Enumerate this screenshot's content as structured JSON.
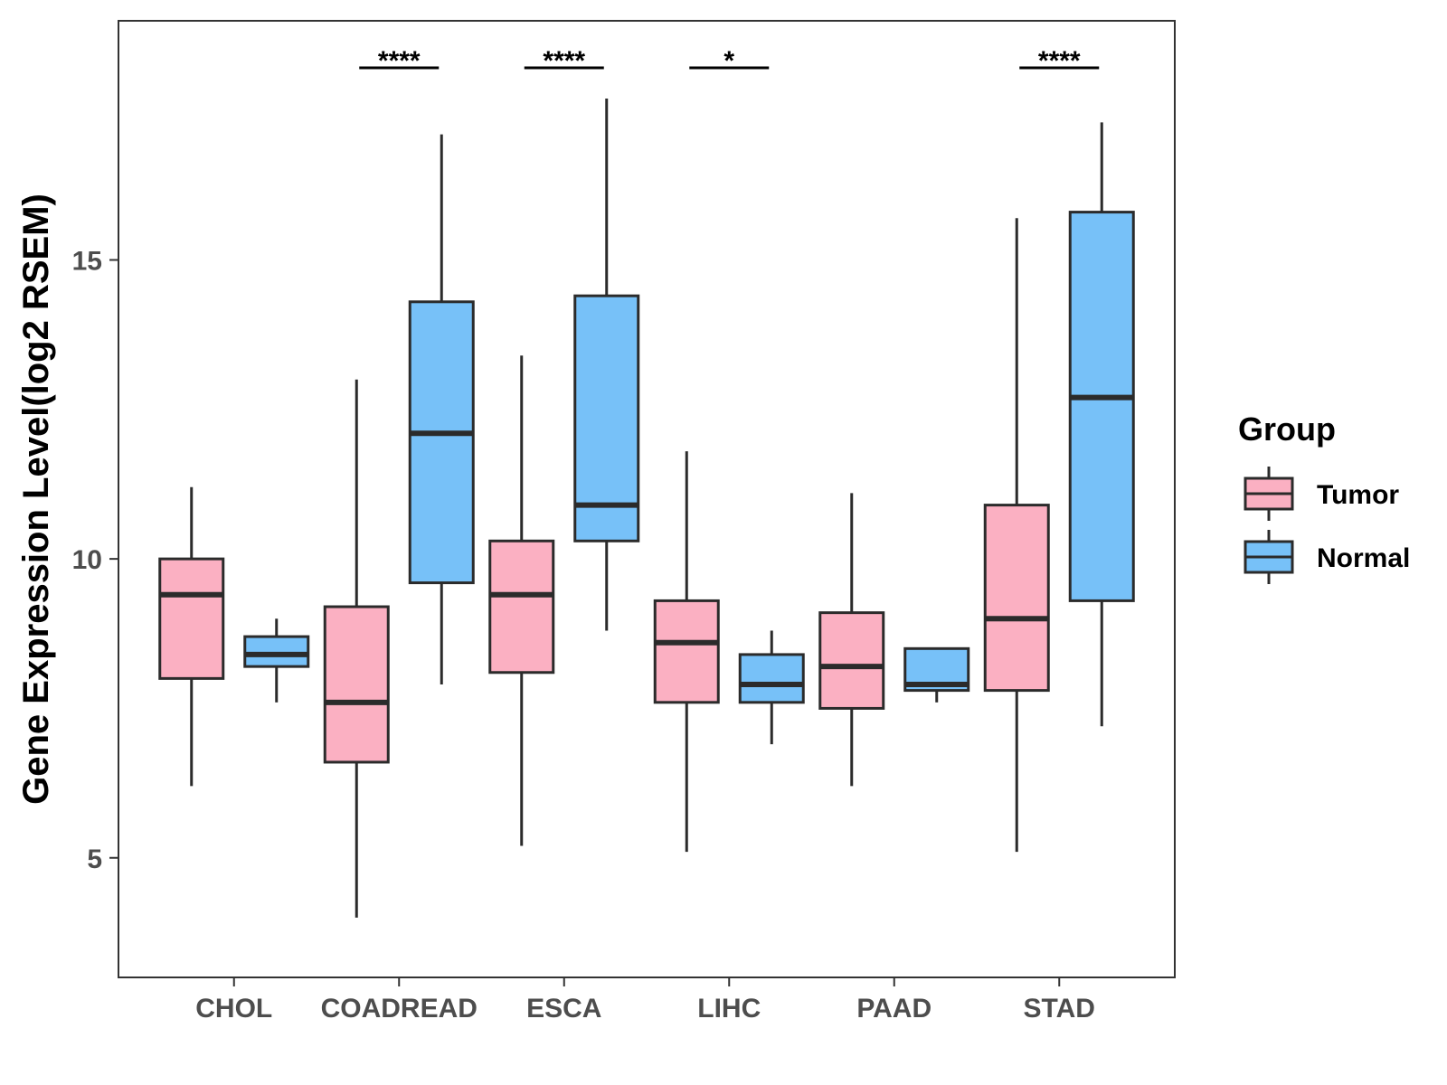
{
  "chart_data": {
    "type": "boxplot",
    "title": "",
    "xlabel": "",
    "ylabel": "Gene Expression Level(log2 RSEM)",
    "ylim": [
      3,
      19
    ],
    "yticks": [
      5,
      10,
      15
    ],
    "grid": false,
    "legend": {
      "title": "Group",
      "position": "right",
      "entries": [
        {
          "name": "Tumor",
          "color": "#FBB0C2"
        },
        {
          "name": "Normal",
          "color": "#77C1F8"
        }
      ]
    },
    "categories": [
      "CHOL",
      "COADREAD",
      "ESCA",
      "LIHC",
      "PAAD",
      "STAD"
    ],
    "series": [
      {
        "name": "Tumor",
        "color": "#FBB0C2",
        "boxes": [
          {
            "min": 6.2,
            "q1": 8.0,
            "median": 9.4,
            "q3": 10.0,
            "max": 11.2
          },
          {
            "min": 4.0,
            "q1": 6.6,
            "median": 7.6,
            "q3": 9.2,
            "max": 13.0
          },
          {
            "min": 5.2,
            "q1": 8.1,
            "median": 9.4,
            "q3": 10.3,
            "max": 13.4
          },
          {
            "min": 5.1,
            "q1": 7.6,
            "median": 8.6,
            "q3": 9.3,
            "max": 11.8
          },
          {
            "min": 6.2,
            "q1": 7.5,
            "median": 8.2,
            "q3": 9.1,
            "max": 11.1
          },
          {
            "min": 5.1,
            "q1": 7.8,
            "median": 9.0,
            "q3": 10.9,
            "max": 15.7
          }
        ]
      },
      {
        "name": "Normal",
        "color": "#77C1F8",
        "boxes": [
          {
            "min": 7.6,
            "q1": 8.2,
            "median": 8.4,
            "q3": 8.7,
            "max": 9.0
          },
          {
            "min": 7.9,
            "q1": 9.6,
            "median": 12.1,
            "q3": 14.3,
            "max": 17.1
          },
          {
            "min": 8.8,
            "q1": 10.3,
            "median": 10.9,
            "q3": 14.4,
            "max": 17.7
          },
          {
            "min": 6.9,
            "q1": 7.6,
            "median": 7.9,
            "q3": 8.4,
            "max": 8.8
          },
          {
            "min": 7.6,
            "q1": 7.8,
            "median": 7.9,
            "q3": 8.5,
            "max": 8.5
          },
          {
            "min": 7.2,
            "q1": 9.3,
            "median": 12.7,
            "q3": 15.8,
            "max": 17.3
          }
        ]
      }
    ],
    "annotations": [
      {
        "category": "COADREAD",
        "label": "****"
      },
      {
        "category": "ESCA",
        "label": "****"
      },
      {
        "category": "LIHC",
        "label": "*"
      },
      {
        "category": "STAD",
        "label": "****"
      }
    ]
  }
}
